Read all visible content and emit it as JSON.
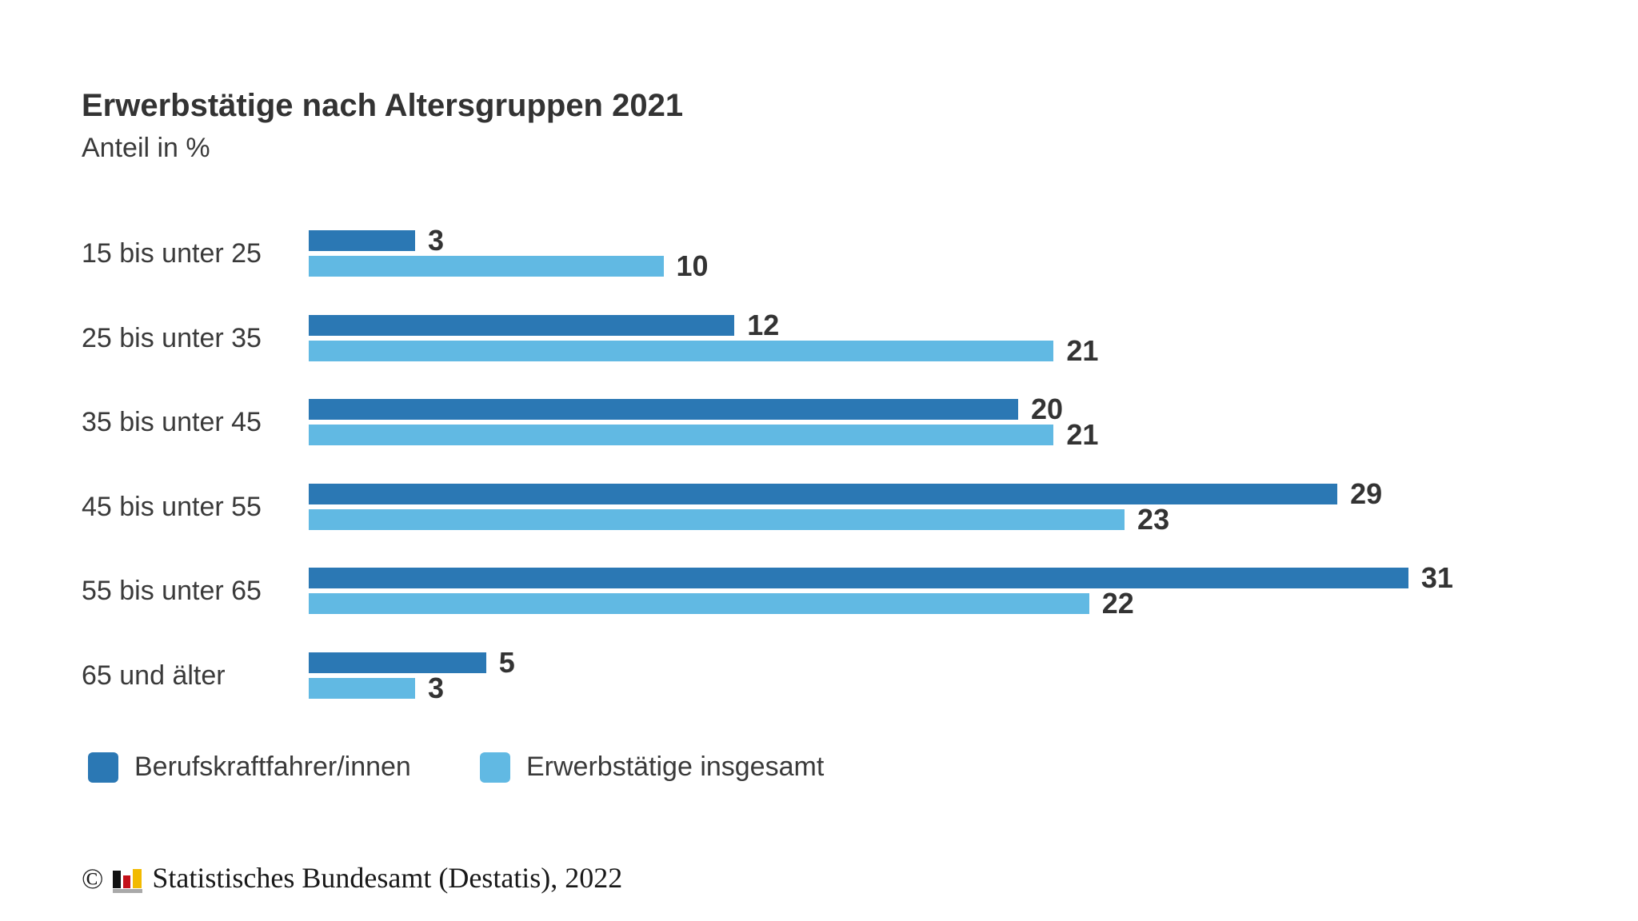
{
  "header": {
    "title": "Erwerbstätige nach Altersgruppen 2021",
    "subtitle": "Anteil in %"
  },
  "chart_data": {
    "type": "bar",
    "orientation": "horizontal",
    "title": "Erwerbstätige nach Altersgruppen 2021",
    "subtitle": "Anteil in %",
    "unit": "%",
    "categories": [
      "15 bis unter 25",
      "25 bis unter 35",
      "35 bis unter 45",
      "45 bis unter 55",
      "55 bis unter 65",
      "65 und älter"
    ],
    "series": [
      {
        "name": "Berufskraftfahrer/innen",
        "color": "#2b78b4",
        "values": [
          3,
          12,
          20,
          29,
          31,
          5
        ]
      },
      {
        "name": "Erwerbstätige insgesamt",
        "color": "#61b9e3",
        "values": [
          10,
          21,
          21,
          23,
          22,
          3
        ]
      }
    ],
    "value_labels": true,
    "xlim": [
      0,
      33
    ],
    "grid": false,
    "legend_position": "bottom"
  },
  "footer": {
    "copyright": "©",
    "source": "Statistisches Bundesamt (Destatis), 2022",
    "logo": {
      "icon": "destatis-bar-chart-logo",
      "colors": {
        "black": "#111111",
        "red": "#c41019",
        "gold": "#f2ba00",
        "base": "#a9a9a9"
      }
    }
  },
  "colors": {
    "series1": "#2b78b4",
    "series2": "#61b9e3",
    "text": "#333333",
    "background": "#ffffff"
  }
}
